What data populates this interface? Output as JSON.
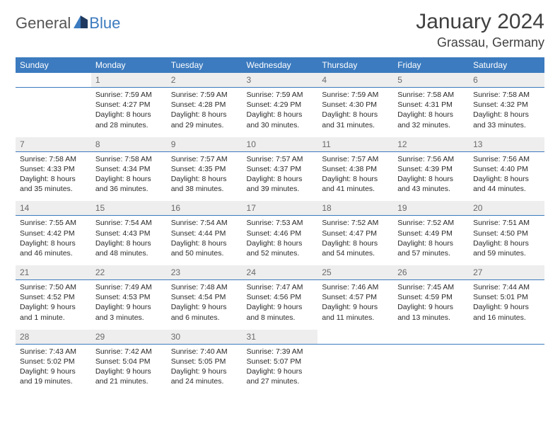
{
  "logo": {
    "text1": "General",
    "text2": "Blue"
  },
  "title": {
    "month": "January 2024",
    "location": "Grassau, Germany"
  },
  "colors": {
    "header_bg": "#3c7bbf",
    "header_fg": "#ffffff",
    "daynum_bg": "#eeeeee",
    "daynum_fg": "#6a6a6a",
    "rule": "#3c7bbf",
    "logo_gray": "#555555",
    "logo_blue": "#3c7bbf",
    "text": "#2a2a2a"
  },
  "typography": {
    "month_fontsize": 30,
    "location_fontsize": 18,
    "header_fontsize": 12,
    "daynum_fontsize": 12,
    "body_fontsize": 10.5
  },
  "weekdays": [
    "Sunday",
    "Monday",
    "Tuesday",
    "Wednesday",
    "Thursday",
    "Friday",
    "Saturday"
  ],
  "weeks": [
    {
      "days": [
        {
          "n": "",
          "sunrise": "",
          "sunset": "",
          "daylight": ""
        },
        {
          "n": "1",
          "sunrise": "Sunrise: 7:59 AM",
          "sunset": "Sunset: 4:27 PM",
          "daylight": "Daylight: 8 hours and 28 minutes."
        },
        {
          "n": "2",
          "sunrise": "Sunrise: 7:59 AM",
          "sunset": "Sunset: 4:28 PM",
          "daylight": "Daylight: 8 hours and 29 minutes."
        },
        {
          "n": "3",
          "sunrise": "Sunrise: 7:59 AM",
          "sunset": "Sunset: 4:29 PM",
          "daylight": "Daylight: 8 hours and 30 minutes."
        },
        {
          "n": "4",
          "sunrise": "Sunrise: 7:59 AM",
          "sunset": "Sunset: 4:30 PM",
          "daylight": "Daylight: 8 hours and 31 minutes."
        },
        {
          "n": "5",
          "sunrise": "Sunrise: 7:58 AM",
          "sunset": "Sunset: 4:31 PM",
          "daylight": "Daylight: 8 hours and 32 minutes."
        },
        {
          "n": "6",
          "sunrise": "Sunrise: 7:58 AM",
          "sunset": "Sunset: 4:32 PM",
          "daylight": "Daylight: 8 hours and 33 minutes."
        }
      ]
    },
    {
      "days": [
        {
          "n": "7",
          "sunrise": "Sunrise: 7:58 AM",
          "sunset": "Sunset: 4:33 PM",
          "daylight": "Daylight: 8 hours and 35 minutes."
        },
        {
          "n": "8",
          "sunrise": "Sunrise: 7:58 AM",
          "sunset": "Sunset: 4:34 PM",
          "daylight": "Daylight: 8 hours and 36 minutes."
        },
        {
          "n": "9",
          "sunrise": "Sunrise: 7:57 AM",
          "sunset": "Sunset: 4:35 PM",
          "daylight": "Daylight: 8 hours and 38 minutes."
        },
        {
          "n": "10",
          "sunrise": "Sunrise: 7:57 AM",
          "sunset": "Sunset: 4:37 PM",
          "daylight": "Daylight: 8 hours and 39 minutes."
        },
        {
          "n": "11",
          "sunrise": "Sunrise: 7:57 AM",
          "sunset": "Sunset: 4:38 PM",
          "daylight": "Daylight: 8 hours and 41 minutes."
        },
        {
          "n": "12",
          "sunrise": "Sunrise: 7:56 AM",
          "sunset": "Sunset: 4:39 PM",
          "daylight": "Daylight: 8 hours and 43 minutes."
        },
        {
          "n": "13",
          "sunrise": "Sunrise: 7:56 AM",
          "sunset": "Sunset: 4:40 PM",
          "daylight": "Daylight: 8 hours and 44 minutes."
        }
      ]
    },
    {
      "days": [
        {
          "n": "14",
          "sunrise": "Sunrise: 7:55 AM",
          "sunset": "Sunset: 4:42 PM",
          "daylight": "Daylight: 8 hours and 46 minutes."
        },
        {
          "n": "15",
          "sunrise": "Sunrise: 7:54 AM",
          "sunset": "Sunset: 4:43 PM",
          "daylight": "Daylight: 8 hours and 48 minutes."
        },
        {
          "n": "16",
          "sunrise": "Sunrise: 7:54 AM",
          "sunset": "Sunset: 4:44 PM",
          "daylight": "Daylight: 8 hours and 50 minutes."
        },
        {
          "n": "17",
          "sunrise": "Sunrise: 7:53 AM",
          "sunset": "Sunset: 4:46 PM",
          "daylight": "Daylight: 8 hours and 52 minutes."
        },
        {
          "n": "18",
          "sunrise": "Sunrise: 7:52 AM",
          "sunset": "Sunset: 4:47 PM",
          "daylight": "Daylight: 8 hours and 54 minutes."
        },
        {
          "n": "19",
          "sunrise": "Sunrise: 7:52 AM",
          "sunset": "Sunset: 4:49 PM",
          "daylight": "Daylight: 8 hours and 57 minutes."
        },
        {
          "n": "20",
          "sunrise": "Sunrise: 7:51 AM",
          "sunset": "Sunset: 4:50 PM",
          "daylight": "Daylight: 8 hours and 59 minutes."
        }
      ]
    },
    {
      "days": [
        {
          "n": "21",
          "sunrise": "Sunrise: 7:50 AM",
          "sunset": "Sunset: 4:52 PM",
          "daylight": "Daylight: 9 hours and 1 minute."
        },
        {
          "n": "22",
          "sunrise": "Sunrise: 7:49 AM",
          "sunset": "Sunset: 4:53 PM",
          "daylight": "Daylight: 9 hours and 3 minutes."
        },
        {
          "n": "23",
          "sunrise": "Sunrise: 7:48 AM",
          "sunset": "Sunset: 4:54 PM",
          "daylight": "Daylight: 9 hours and 6 minutes."
        },
        {
          "n": "24",
          "sunrise": "Sunrise: 7:47 AM",
          "sunset": "Sunset: 4:56 PM",
          "daylight": "Daylight: 9 hours and 8 minutes."
        },
        {
          "n": "25",
          "sunrise": "Sunrise: 7:46 AM",
          "sunset": "Sunset: 4:57 PM",
          "daylight": "Daylight: 9 hours and 11 minutes."
        },
        {
          "n": "26",
          "sunrise": "Sunrise: 7:45 AM",
          "sunset": "Sunset: 4:59 PM",
          "daylight": "Daylight: 9 hours and 13 minutes."
        },
        {
          "n": "27",
          "sunrise": "Sunrise: 7:44 AM",
          "sunset": "Sunset: 5:01 PM",
          "daylight": "Daylight: 9 hours and 16 minutes."
        }
      ]
    },
    {
      "days": [
        {
          "n": "28",
          "sunrise": "Sunrise: 7:43 AM",
          "sunset": "Sunset: 5:02 PM",
          "daylight": "Daylight: 9 hours and 19 minutes."
        },
        {
          "n": "29",
          "sunrise": "Sunrise: 7:42 AM",
          "sunset": "Sunset: 5:04 PM",
          "daylight": "Daylight: 9 hours and 21 minutes."
        },
        {
          "n": "30",
          "sunrise": "Sunrise: 7:40 AM",
          "sunset": "Sunset: 5:05 PM",
          "daylight": "Daylight: 9 hours and 24 minutes."
        },
        {
          "n": "31",
          "sunrise": "Sunrise: 7:39 AM",
          "sunset": "Sunset: 5:07 PM",
          "daylight": "Daylight: 9 hours and 27 minutes."
        },
        {
          "n": "",
          "sunrise": "",
          "sunset": "",
          "daylight": ""
        },
        {
          "n": "",
          "sunrise": "",
          "sunset": "",
          "daylight": ""
        },
        {
          "n": "",
          "sunrise": "",
          "sunset": "",
          "daylight": ""
        }
      ]
    }
  ]
}
